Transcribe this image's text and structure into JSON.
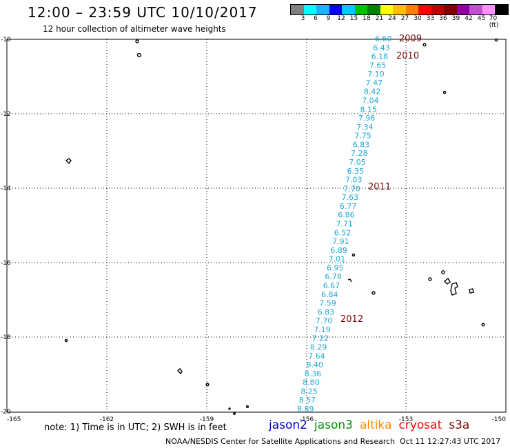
{
  "header": {
    "title": "12:00 – 23:59 UTC 10/10/2017",
    "subtitle": "12 hour collection of altimeter wave heights"
  },
  "color_scale": {
    "labels": [
      "3",
      "6",
      "9",
      "12",
      "15",
      "18",
      "21",
      "24",
      "27",
      "30",
      "33",
      "36",
      "39",
      "42",
      "45",
      "70 (ft)"
    ],
    "colors": [
      "#808080",
      "#00ffff",
      "#20b0ff",
      "#0000ff",
      "#00c8ff",
      "#00c000",
      "#008000",
      "#ffff00",
      "#ffc000",
      "#ff8000",
      "#ff0000",
      "#c00000",
      "#800000",
      "#9000a0",
      "#c050d0",
      "#ff90ff",
      "#000000"
    ]
  },
  "axes": {
    "lon_labels": [
      "-165",
      "-162",
      "-159",
      "-156",
      "-153",
      "-150"
    ],
    "lat_labels": [
      "-10",
      "-12",
      "-14",
      "-16",
      "-18",
      "-20"
    ]
  },
  "track": {
    "color": "#1aa8d6",
    "values": [
      "6.60",
      "6.43",
      "6.18",
      "7.65",
      "7.10",
      "7.47",
      "8.42",
      "7.04",
      "8.15",
      "7.96",
      "7.34",
      "7.75",
      "6.83",
      "7.28",
      "7.05",
      "6.35",
      "7.03",
      "7.70",
      "7.63",
      "6.77",
      "6.86",
      "7.71",
      "6.52",
      "7.91",
      "6.89",
      "7.01",
      "6.95",
      "6.78",
      "6.67",
      "6.84",
      "7.59",
      "6.83",
      "7.70",
      "7.19",
      "7.22",
      "8.29",
      "7.64",
      "8.40",
      "8.36",
      "8.80",
      "8.25",
      "8.57",
      "8.89"
    ]
  },
  "cycles": [
    "2009",
    "2010",
    "2011",
    "2012"
  ],
  "footer": {
    "note": "note: 1) Time is in UTC; 2) SWH is in feet",
    "satellites": [
      {
        "name": "jason2",
        "color": "#0000cc"
      },
      {
        "name": "jason3",
        "color": "#009000"
      },
      {
        "name": "altika",
        "color": "#ff8c00"
      },
      {
        "name": "cryosat",
        "color": "#ff0000"
      },
      {
        "name": "s3a",
        "color": "#7a0a0a"
      }
    ],
    "credit": "NOAA/NESDIS Center for Satellite Applications and Research",
    "timestamp": "Oct 11 12:27:43 UTC 2017"
  }
}
